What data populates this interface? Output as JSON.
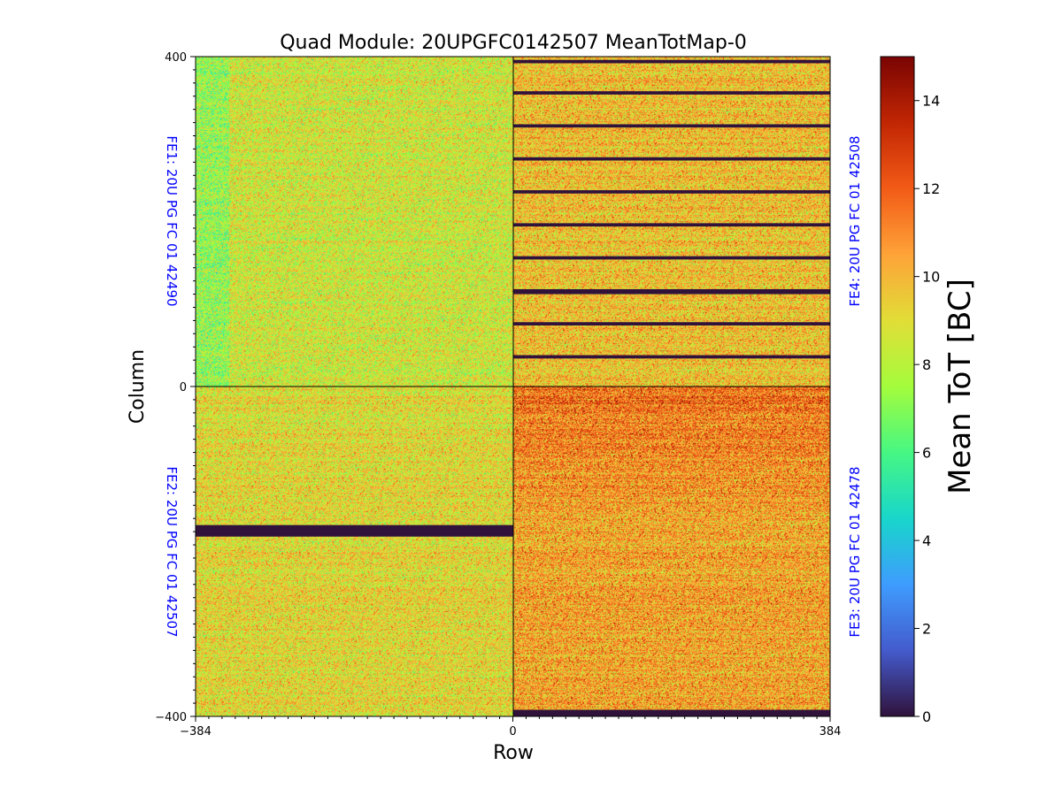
{
  "chart_data": {
    "type": "heatmap",
    "title": "Quad Module: 20UPGFC0142507 MeanTotMap-0",
    "xlabel": "Row",
    "ylabel": "Column",
    "xlim": [
      -384,
      384
    ],
    "ylim": [
      -400,
      400
    ],
    "x_ticks": [
      {
        "value": -384,
        "label": "−384"
      },
      {
        "value": 0,
        "label": "0"
      },
      {
        "value": 384,
        "label": "384"
      }
    ],
    "y_ticks": [
      {
        "value": 400,
        "label": "400"
      },
      {
        "value": 0,
        "label": "0"
      },
      {
        "value": -400,
        "label": "−400"
      }
    ],
    "colorbar": {
      "label": "Mean ToT [BC]",
      "range": [
        0,
        15
      ],
      "colormap": "turbo",
      "ticks": [
        {
          "value": 0,
          "label": "0"
        },
        {
          "value": 2,
          "label": "2"
        },
        {
          "value": 4,
          "label": "4"
        },
        {
          "value": 6,
          "label": "6"
        },
        {
          "value": 8,
          "label": "8"
        },
        {
          "value": 10,
          "label": "10"
        },
        {
          "value": 12,
          "label": "12"
        },
        {
          "value": 14,
          "label": "14"
        }
      ]
    },
    "label_color": "#0000ff",
    "chips": [
      {
        "id": "FE1",
        "label": "FE1: 20U PG FC 01 42490",
        "x_range": [
          -384,
          0
        ],
        "y_range": [
          0,
          400
        ],
        "mean_tot": 8.6,
        "spread": 2.4,
        "dead_column_bands": []
      },
      {
        "id": "FE2",
        "label": "FE2: 20U PG FC 01 42507",
        "x_range": [
          -384,
          0
        ],
        "y_range": [
          -400,
          0
        ],
        "mean_tot": 9.1,
        "spread": 2.4,
        "dead_column_bands": [
          [
            -182,
            -168
          ]
        ]
      },
      {
        "id": "FE3",
        "label": "FE3: 20U PG FC 01 42478",
        "x_range": [
          0,
          384
        ],
        "y_range": [
          -400,
          0
        ],
        "mean_tot": 10.4,
        "spread": 2.6,
        "dead_column_bands": [
          [
            -400,
            -392
          ]
        ]
      },
      {
        "id": "FE4",
        "label": "FE4: 20U PG FC 01 42508",
        "x_range": [
          0,
          384
        ],
        "y_range": [
          0,
          400
        ],
        "mean_tot": 9.8,
        "spread": 2.5,
        "dead_column_bands": [
          [
            392,
            396
          ],
          [
            354,
            358
          ],
          [
            314,
            318
          ],
          [
            274,
            278
          ],
          [
            234,
            238
          ],
          [
            194,
            198
          ],
          [
            154,
            158
          ],
          [
            112,
            118
          ],
          [
            74,
            78
          ],
          [
            34,
            38
          ]
        ]
      }
    ]
  }
}
